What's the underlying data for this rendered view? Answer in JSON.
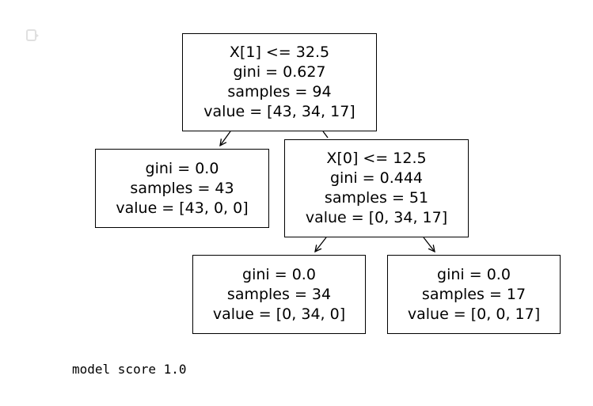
{
  "tree": {
    "root": {
      "split": "X[1] <= 32.5",
      "gini": "gini = 0.627",
      "samples": "samples = 94",
      "value": "value = [43, 34, 17]"
    },
    "left_leaf": {
      "gini": "gini = 0.0",
      "samples": "samples = 43",
      "value": "value = [43, 0, 0]"
    },
    "right_node": {
      "split": "X[0] <= 12.5",
      "gini": "gini = 0.444",
      "samples": "samples = 51",
      "value": "value = [0, 34, 17]"
    },
    "right_left_leaf": {
      "gini": "gini = 0.0",
      "samples": "samples = 34",
      "value": "value = [0, 34, 0]"
    },
    "right_right_leaf": {
      "gini": "gini = 0.0",
      "samples": "samples = 17",
      "value": "value = [0, 0, 17]"
    }
  },
  "output": {
    "icon": "output-indicator-icon",
    "score_text": "model score 1.0"
  }
}
